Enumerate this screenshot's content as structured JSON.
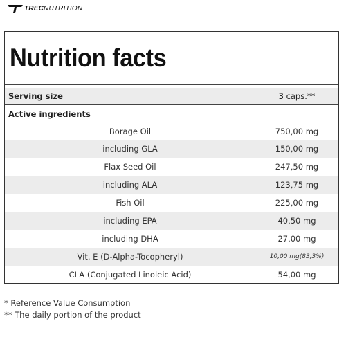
{
  "brand": {
    "strong": "TREC",
    "rest": "NUTRITION"
  },
  "title": "Nutrition facts",
  "serving": {
    "label": "Serving size",
    "value": "3 caps.**"
  },
  "section_label": "Active ingredients",
  "ingredients": [
    {
      "name": "Borage Oil",
      "amount": "750,00 mg"
    },
    {
      "name": "including GLA",
      "amount": "150,00 mg"
    },
    {
      "name": "Flax Seed Oil",
      "amount": "247,50 mg"
    },
    {
      "name": "including ALA",
      "amount": "123,75 mg"
    },
    {
      "name": "Fish Oil",
      "amount": "225,00 mg"
    },
    {
      "name": "including EPA",
      "amount": "40,50 mg"
    },
    {
      "name": "including DHA",
      "amount": "27,00 mg"
    },
    {
      "name": "Vit. E (D-Alpha-Tocopheryl)",
      "amount": "10,00 mg(83,3%)"
    },
    {
      "name": "CLA (Conjugated Linoleic Acid)",
      "amount": "54,00 mg"
    }
  ],
  "footnotes": [
    "* Reference Value Consumption",
    "** The daily portion of the product"
  ]
}
